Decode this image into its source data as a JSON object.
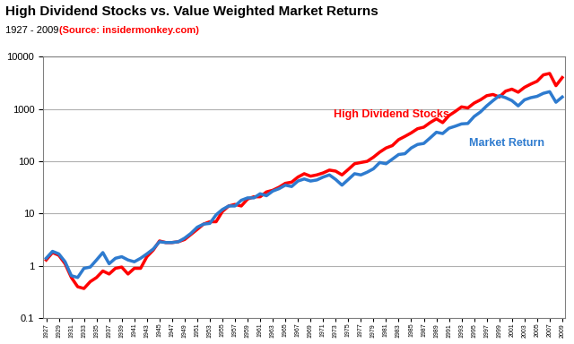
{
  "chart_data": {
    "type": "line",
    "title": "High Dividend Stocks vs. Value Weighted Market Returns",
    "subtitle": "1927 - 2009",
    "source": "(Source: insidermonkey.com)",
    "categories": [
      "1927",
      null,
      "1929",
      null,
      "1931",
      null,
      "1933",
      null,
      "1935",
      null,
      "1937",
      null,
      "1939",
      null,
      "1941",
      null,
      "1943",
      null,
      "1945",
      null,
      "1947",
      null,
      "1949",
      null,
      "1951",
      null,
      "1953",
      null,
      "1955",
      null,
      "1957",
      null,
      "1959",
      null,
      "1961",
      null,
      "1963",
      null,
      "1965",
      null,
      "1967",
      null,
      "1969",
      null,
      "1971",
      null,
      "1973",
      null,
      "1975",
      null,
      "1977",
      null,
      "1979",
      null,
      "1981",
      null,
      "1983",
      null,
      "1985",
      null,
      "1987",
      null,
      "1989",
      null,
      "1991",
      null,
      "1993",
      null,
      "1995",
      null,
      "1997",
      null,
      "1999",
      null,
      "2001",
      null,
      "2003",
      null,
      "2005",
      null,
      "2007",
      null,
      "2009"
    ],
    "series": [
      {
        "name": "High Dividend Stocks",
        "color": "#ff0000",
        "values": [
          1.3,
          1.8,
          1.6,
          1.1,
          0.6,
          0.4,
          0.37,
          0.5,
          0.6,
          0.8,
          0.7,
          0.9,
          0.95,
          0.7,
          0.9,
          0.9,
          1.5,
          2.0,
          3.0,
          2.8,
          2.8,
          2.9,
          3.2,
          4.0,
          5.0,
          6.3,
          7.0,
          7.0,
          11,
          14,
          15,
          14,
          19,
          21,
          21,
          26,
          28,
          32,
          38,
          40,
          50,
          58,
          52,
          55,
          60,
          68,
          65,
          55,
          70,
          90,
          95,
          100,
          120,
          150,
          180,
          200,
          260,
          300,
          350,
          420,
          450,
          550,
          650,
          550,
          750,
          900,
          1100,
          1050,
          1300,
          1500,
          1800,
          1900,
          1700,
          2200,
          2400,
          2100,
          2600,
          3000,
          3400,
          4500,
          4800,
          2800,
          4000
        ]
      },
      {
        "name": "Market Return",
        "color": "#2e7bcf",
        "values": [
          1.4,
          1.9,
          1.7,
          1.2,
          0.65,
          0.6,
          0.9,
          0.95,
          1.3,
          1.8,
          1.1,
          1.4,
          1.5,
          1.3,
          1.2,
          1.4,
          1.7,
          2.1,
          2.9,
          2.8,
          2.8,
          2.9,
          3.4,
          4.2,
          5.5,
          6.3,
          6.5,
          9.5,
          12,
          14,
          14,
          18,
          20,
          20,
          24,
          22,
          27,
          30,
          35,
          33,
          42,
          46,
          42,
          44,
          50,
          55,
          45,
          35,
          45,
          58,
          55,
          62,
          72,
          95,
          90,
          110,
          135,
          140,
          180,
          210,
          220,
          280,
          360,
          340,
          430,
          470,
          520,
          530,
          720,
          880,
          1150,
          1450,
          1800,
          1650,
          1450,
          1150,
          1500,
          1650,
          1750,
          2000,
          2150,
          1350,
          1700
        ]
      }
    ],
    "log": "y",
    "ylim": [
      0.1,
      10000
    ],
    "yticks": [
      0.1,
      1,
      10,
      100,
      1000,
      10000
    ],
    "grid": true
  }
}
